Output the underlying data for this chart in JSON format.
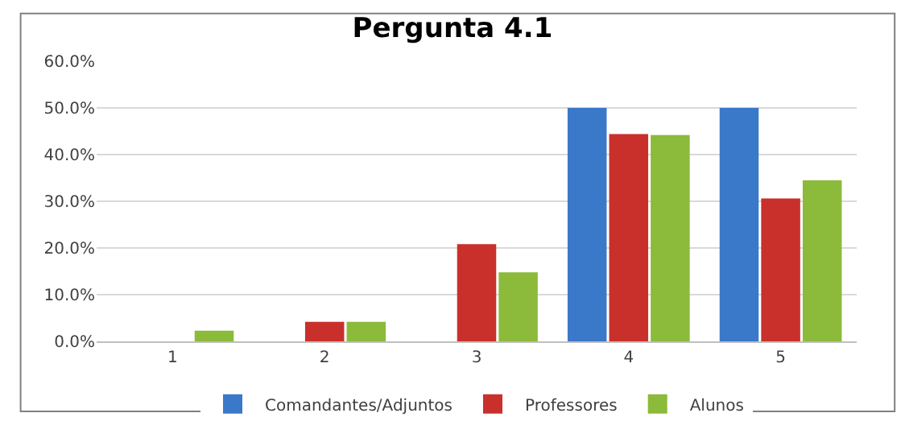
{
  "chart_data": {
    "type": "bar",
    "title": "Pergunta 4.1",
    "categories": [
      "1",
      "2",
      "3",
      "4",
      "5"
    ],
    "series": [
      {
        "name": "Comandantes/Adjuntos",
        "color": "#3a78c9",
        "values": [
          0,
          0,
          0,
          50,
          50
        ]
      },
      {
        "name": "Professores",
        "color": "#c9302c",
        "values": [
          0,
          4.2,
          20.8,
          44.4,
          30.6
        ]
      },
      {
        "name": "Alunos",
        "color": "#8cba3a",
        "values": [
          2.3,
          4.2,
          14.8,
          44.2,
          34.5
        ]
      }
    ],
    "ylim": [
      0,
      60
    ],
    "yticks": [
      {
        "value": 0,
        "label": "0.0%"
      },
      {
        "value": 10,
        "label": "10.0%"
      },
      {
        "value": 20,
        "label": "20.0%"
      },
      {
        "value": 30,
        "label": "30.0%"
      },
      {
        "value": 40,
        "label": "40.0%"
      },
      {
        "value": 50,
        "label": "50.0%"
      },
      {
        "value": 60,
        "label": "60.0%"
      }
    ],
    "grid": "y",
    "legend": "bottom"
  }
}
